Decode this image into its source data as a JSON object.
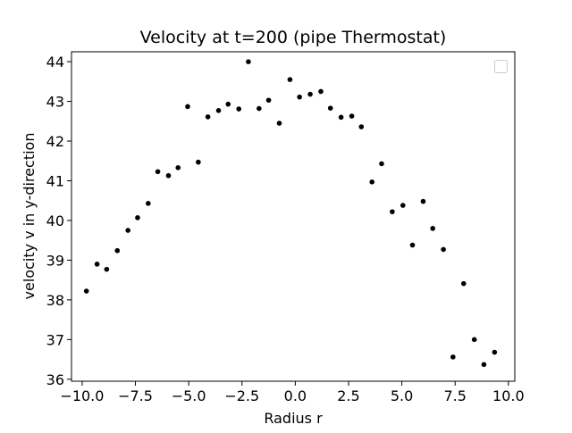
{
  "chart_data": {
    "type": "scatter",
    "title": "Velocity at t=200 (pipe Thermostat)",
    "xlabel": "Radius r",
    "ylabel": "velocity v in y-direction",
    "xlim": [
      -10.5,
      10.3
    ],
    "ylim": [
      35.95,
      44.25
    ],
    "x_ticks": [
      -10.0,
      -7.5,
      -5.0,
      -2.5,
      0.0,
      2.5,
      5.0,
      7.5,
      10.0
    ],
    "x_tick_labels": [
      "−10.0",
      "−7.5",
      "−5.0",
      "−2.5",
      "0.0",
      "2.5",
      "5.0",
      "7.5",
      "10.0"
    ],
    "y_ticks": [
      36,
      37,
      38,
      39,
      40,
      41,
      42,
      43,
      44
    ],
    "y_tick_labels": [
      "36",
      "37",
      "38",
      "39",
      "40",
      "41",
      "42",
      "43",
      "44"
    ],
    "grid": false,
    "legend": {
      "placement": "top-right",
      "entries": []
    },
    "marker_color": "#000000",
    "series": [
      {
        "x": [
          -9.8,
          -9.3,
          -8.85,
          -8.35,
          -7.85,
          -7.4,
          -6.9,
          -6.45,
          -5.95,
          -5.5,
          -5.05,
          -4.55,
          -4.1,
          -3.6,
          -3.15,
          -2.65,
          -2.2,
          -1.7,
          -1.25,
          -0.75,
          -0.25,
          0.2,
          0.7,
          1.2,
          1.65,
          2.15,
          2.65,
          3.1,
          3.6,
          4.05,
          4.55,
          5.05,
          5.5,
          6.0,
          6.45,
          6.95,
          7.4,
          7.9,
          8.4,
          8.85,
          9.35
        ],
        "y": [
          38.22,
          38.9,
          38.77,
          39.24,
          39.75,
          40.07,
          40.43,
          41.23,
          41.13,
          41.33,
          42.87,
          41.47,
          42.61,
          42.77,
          42.93,
          42.81,
          44.0,
          42.82,
          43.03,
          42.45,
          43.55,
          43.11,
          43.18,
          43.25,
          42.83,
          42.6,
          42.63,
          42.36,
          40.97,
          41.43,
          40.22,
          40.38,
          39.38,
          40.48,
          39.8,
          39.27,
          36.56,
          38.41,
          37.0,
          36.37,
          36.68
        ]
      }
    ]
  }
}
